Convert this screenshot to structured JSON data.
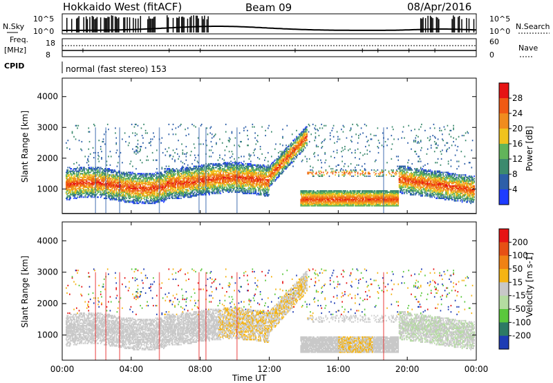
{
  "header": {
    "radar": "Hokkaido West (fitACF)",
    "beam": "Beam 09",
    "date": "08/Apr/2016"
  },
  "meta_panel": {
    "nsky_label": "N.Sky",
    "nsky_ticks": [
      "10^5",
      "10^0"
    ],
    "nsearch_label": "N.Search",
    "nsearch_ticks": [
      "10^5",
      "10^0"
    ],
    "freq_label": "Freq.",
    "freq_unit": "[MHz]",
    "freq_ticks": [
      "18",
      "8"
    ],
    "nave_label": "Nave",
    "nave_ticks": [
      "60",
      "0"
    ],
    "cpid_label": "CPID",
    "cpid_value": "normal (fast stereo) 153"
  },
  "x_axis": {
    "label": "Time UT",
    "ticks": [
      "00:00",
      "04:00",
      "08:00",
      "12:00",
      "16:00",
      "20:00",
      "00:00"
    ]
  },
  "chart_data": [
    {
      "type": "heatmap",
      "panel": "power",
      "ylabel": "Slant Range [km]",
      "yticks": [
        "1000",
        "2000",
        "3000",
        "4000"
      ],
      "ylim": [
        200,
        4600
      ],
      "xlim_hours": [
        0,
        24
      ],
      "colorbar": {
        "label": "Power [dB]",
        "ticks": [
          "4",
          "8",
          "12",
          "16",
          "20",
          "24",
          "28"
        ],
        "colors": [
          "#1e3cff",
          "#2d5fa8",
          "#3c8a6e",
          "#62b45a",
          "#f0c31e",
          "#f08c1e",
          "#f05a14",
          "#e61414"
        ]
      },
      "bands": [
        {
          "name": "main",
          "time": [
            0.2,
            23.8
          ],
          "range_km": [
            700,
            1500
          ]
        },
        {
          "name": "lower",
          "time": [
            13.8,
            19.5
          ],
          "range_km": [
            400,
            1000
          ]
        },
        {
          "name": "rising",
          "time": [
            12.0,
            14.2
          ],
          "range_km": [
            1300,
            2800
          ]
        }
      ]
    },
    {
      "type": "heatmap",
      "panel": "velocity",
      "ylabel": "Slant Range [km]",
      "yticks": [
        "1000",
        "2000",
        "3000",
        "4000"
      ],
      "ylim": [
        200,
        4600
      ],
      "xlim_hours": [
        0,
        24
      ],
      "colorbar": {
        "label": "Velocity [m s-1]",
        "ticks": [
          "200",
          "100",
          "50",
          "15",
          "-15",
          "-50",
          "-100",
          "-200"
        ],
        "colors": [
          "#1e3cb4",
          "#2d7a64",
          "#5ac83c",
          "#b4dca0",
          "#c8c8c8",
          "#f5b414",
          "#f08214",
          "#e65014",
          "#e61414"
        ]
      }
    }
  ]
}
